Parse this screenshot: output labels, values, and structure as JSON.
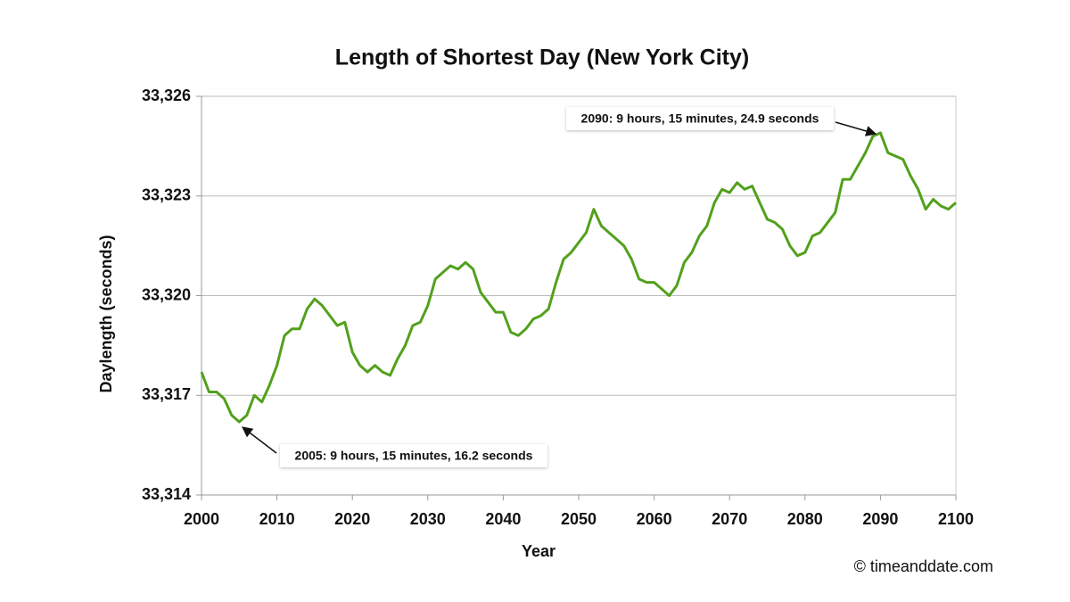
{
  "chart_data": {
    "type": "line",
    "title": "Length of Shortest Day (New York City)",
    "xlabel": "Year",
    "ylabel": "Daylength (seconds)",
    "credit": "© timeanddate.com",
    "x": [
      2000,
      2001,
      2002,
      2003,
      2004,
      2005,
      2006,
      2007,
      2008,
      2009,
      2010,
      2011,
      2012,
      2013,
      2014,
      2015,
      2016,
      2017,
      2018,
      2019,
      2020,
      2021,
      2022,
      2023,
      2024,
      2025,
      2026,
      2027,
      2028,
      2029,
      2030,
      2031,
      2032,
      2033,
      2034,
      2035,
      2036,
      2037,
      2038,
      2039,
      2040,
      2041,
      2042,
      2043,
      2044,
      2045,
      2046,
      2047,
      2048,
      2049,
      2050,
      2051,
      2052,
      2053,
      2054,
      2055,
      2056,
      2057,
      2058,
      2059,
      2060,
      2061,
      2062,
      2063,
      2064,
      2065,
      2066,
      2067,
      2068,
      2069,
      2070,
      2071,
      2072,
      2073,
      2074,
      2075,
      2076,
      2077,
      2078,
      2079,
      2080,
      2081,
      2082,
      2083,
      2084,
      2085,
      2086,
      2087,
      2088,
      2089,
      2090,
      2091,
      2092,
      2093,
      2094,
      2095,
      2096,
      2097,
      2098,
      2099,
      2100
    ],
    "series": [
      {
        "color": "#52a01c",
        "values": [
          33317.7,
          33317.1,
          33317.1,
          33316.9,
          33316.4,
          33316.2,
          33316.4,
          33317.0,
          33316.8,
          33317.3,
          33317.9,
          33318.8,
          33319.0,
          33319.0,
          33319.6,
          33319.9,
          33319.7,
          33319.4,
          33319.1,
          33319.2,
          33318.3,
          33317.9,
          33317.7,
          33317.9,
          33317.7,
          33317.6,
          33318.1,
          33318.5,
          33319.1,
          33319.2,
          33319.7,
          33320.5,
          33320.7,
          33320.9,
          33320.8,
          33321.0,
          33320.8,
          33320.1,
          33319.8,
          33319.5,
          33319.5,
          33318.9,
          33318.8,
          33319.0,
          33319.3,
          33319.4,
          33319.6,
          33320.4,
          33321.1,
          33321.3,
          33321.6,
          33321.9,
          33322.6,
          33322.1,
          33321.9,
          33321.7,
          33321.5,
          33321.1,
          33320.5,
          33320.4,
          33320.4,
          33320.2,
          33320.0,
          33320.3,
          33321.0,
          33321.3,
          33321.8,
          33322.1,
          33322.8,
          33323.2,
          33323.1,
          33323.4,
          33323.2,
          33323.3,
          33322.8,
          33322.3,
          33322.2,
          33322.0,
          33321.5,
          33321.2,
          33321.3,
          33321.8,
          33321.9,
          33322.2,
          33322.5,
          33323.5,
          33323.5,
          33323.9,
          33324.3,
          33324.8,
          33324.9,
          33324.3,
          33324.2,
          33324.1,
          33323.6,
          33323.2,
          33322.6,
          33322.9,
          33322.7,
          33322.6,
          33322.8
        ]
      }
    ],
    "xlim": [
      2000,
      2100
    ],
    "xticks": [
      2000,
      2010,
      2020,
      2030,
      2040,
      2050,
      2060,
      2070,
      2080,
      2090,
      2100
    ],
    "ylim": [
      33314,
      33326
    ],
    "yticks": [
      {
        "value": 33314,
        "label": "33,314"
      },
      {
        "value": 33317,
        "label": "33,317"
      },
      {
        "value": 33320,
        "label": "33,320"
      },
      {
        "value": 33323,
        "label": "33,323"
      },
      {
        "value": 33326,
        "label": "33,326"
      }
    ],
    "grid": true,
    "annotations": [
      {
        "text": "2005: 9 hours, 15 minutes, 16.2 seconds"
      },
      {
        "text": "2090: 9 hours, 15 minutes, 24.9 seconds"
      }
    ]
  }
}
